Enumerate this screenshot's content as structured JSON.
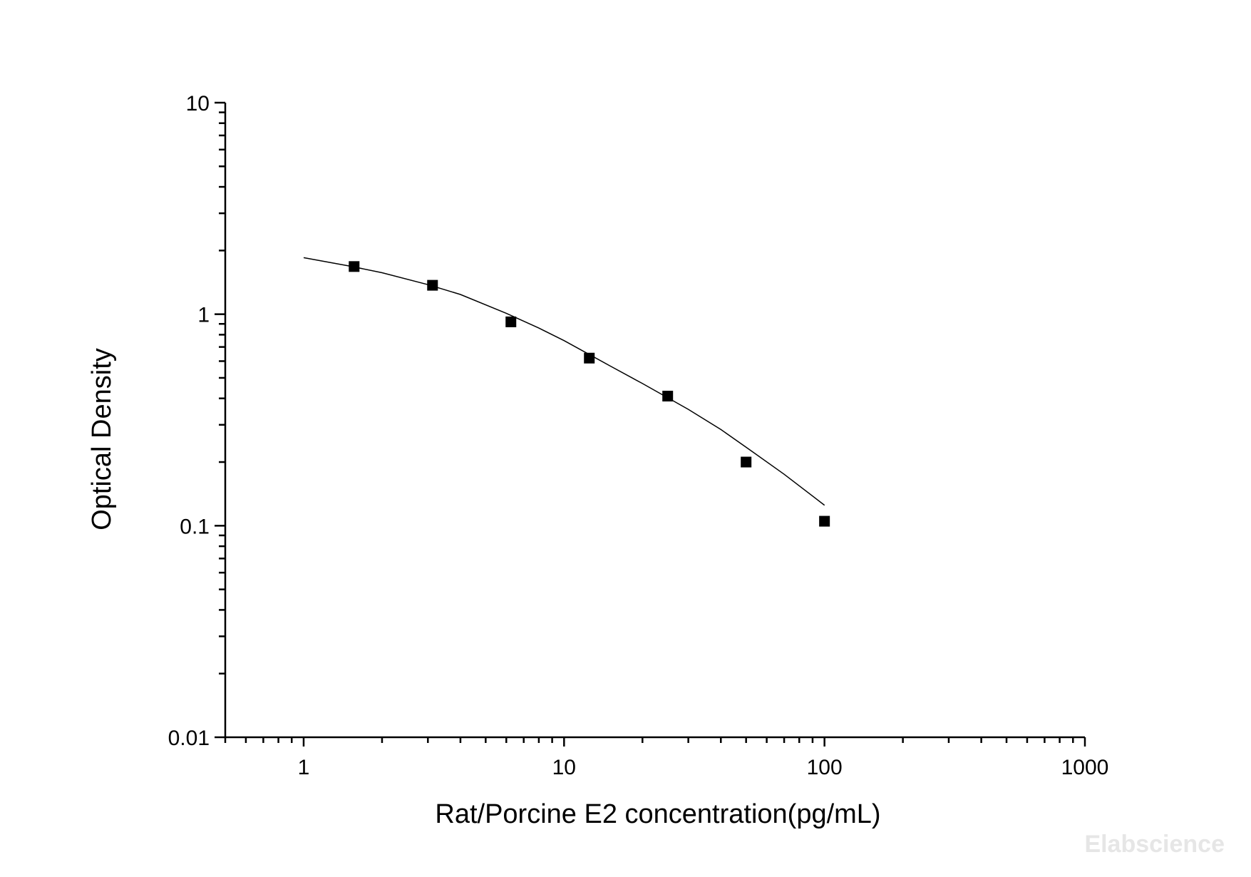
{
  "chart_data": {
    "type": "scatter",
    "title": "",
    "xlabel": "Rat/Porcine E2 concentration(pg/mL)",
    "ylabel": "Optical Density",
    "x_scale": "log",
    "y_scale": "log",
    "xlim": [
      0.5,
      1000
    ],
    "ylim": [
      0.01,
      10
    ],
    "x_ticks": [
      1,
      10,
      100,
      1000
    ],
    "x_tick_labels": [
      "1",
      "10",
      "100",
      "1000"
    ],
    "y_ticks": [
      0.01,
      0.1,
      1,
      10
    ],
    "y_tick_labels": [
      "0.01",
      "0.1",
      "1",
      "10"
    ],
    "grid": false,
    "legend": "none",
    "series": [
      {
        "kind": "points",
        "marker": "square",
        "color": "#000000",
        "x": [
          1.5625,
          3.125,
          6.25,
          12.5,
          25,
          50,
          100
        ],
        "y": [
          1.68,
          1.37,
          0.92,
          0.62,
          0.41,
          0.2,
          0.105
        ]
      },
      {
        "kind": "fit-curve",
        "color": "#000000",
        "x": [
          1,
          1.5,
          2,
          3,
          4,
          6,
          8,
          10,
          15,
          20,
          30,
          40,
          50,
          70,
          100
        ],
        "y": [
          1.85,
          1.69,
          1.57,
          1.38,
          1.24,
          1.01,
          0.86,
          0.75,
          0.57,
          0.47,
          0.355,
          0.285,
          0.235,
          0.175,
          0.125
        ]
      }
    ]
  },
  "watermark": "Elabscience"
}
